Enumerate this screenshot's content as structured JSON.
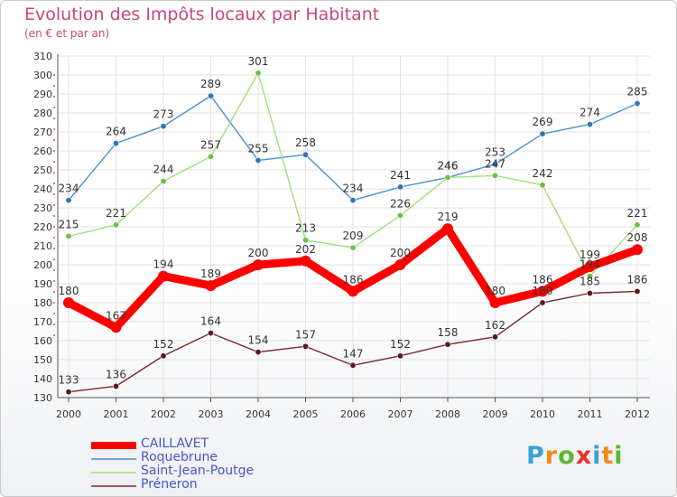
{
  "title": "Evolution des Impôts locaux par Habitant",
  "subtitle": "(en € et par an)",
  "logo": {
    "text": "Proxiti",
    "letter_colors": [
      "#3aa0d8",
      "#f08a1c",
      "#5cb82e",
      "#e8332a",
      "#3aa0d8",
      "#f08a1c",
      "#5cb82e"
    ]
  },
  "chart_data": {
    "type": "line",
    "title": "Evolution des Impôts locaux par Habitant",
    "subtitle": "(en € et par an)",
    "xlabel": "",
    "ylabel": "",
    "x": [
      "2000",
      "2001",
      "2002",
      "2003",
      "2004",
      "2005",
      "2006",
      "2007",
      "2008",
      "2009",
      "2010",
      "2011",
      "2012"
    ],
    "ylim": [
      130,
      310
    ],
    "yticks": [
      130,
      140,
      150,
      160,
      170,
      180,
      190,
      200,
      210,
      220,
      230,
      240,
      250,
      260,
      270,
      280,
      290,
      300,
      310
    ],
    "grid": true,
    "legend_position": "bottom-left",
    "series": [
      {
        "name": "Roquebrune",
        "color": "#4a8fcf",
        "marker": "#2f73b8",
        "values": [
          234,
          264,
          273,
          289,
          255,
          258,
          234,
          241,
          246,
          253,
          269,
          274,
          285
        ]
      },
      {
        "name": "Saint-Jean-Poutge",
        "color": "#9ee07a",
        "marker": "#6cc040",
        "values": [
          215,
          221,
          244,
          257,
          301,
          213,
          209,
          226,
          246,
          247,
          242,
          194,
          221
        ]
      },
      {
        "name": "Préneron",
        "color": "#7a2a2a",
        "marker": "#5a1818",
        "values": [
          133,
          136,
          152,
          164,
          154,
          157,
          147,
          152,
          158,
          162,
          180,
          185,
          186
        ]
      },
      {
        "name": "CAILLAVET",
        "color": "#ff0000",
        "marker": "#ff0000",
        "emphasis": true,
        "values": [
          180,
          167,
          194,
          189,
          200,
          202,
          186,
          200,
          219,
          180,
          186,
          199,
          208
        ]
      }
    ],
    "legend_order": [
      "CAILLAVET",
      "Roquebrune",
      "Saint-Jean-Poutge",
      "Préneron"
    ]
  }
}
